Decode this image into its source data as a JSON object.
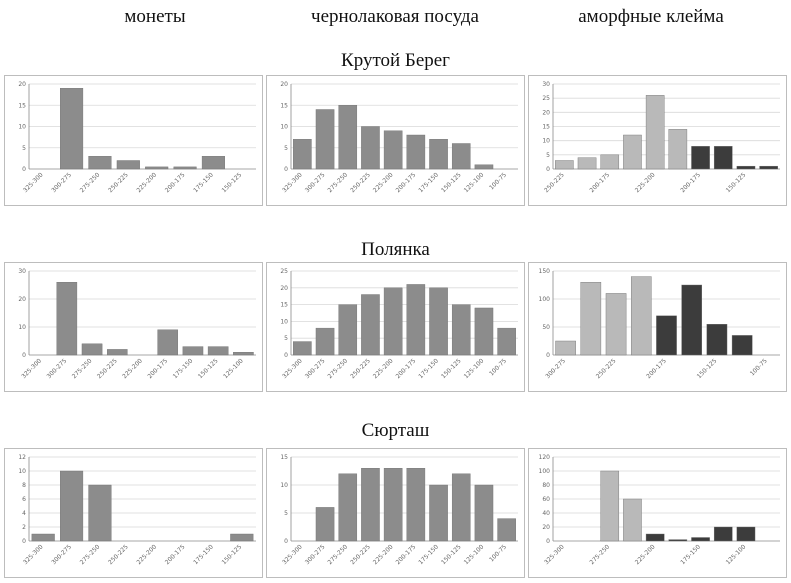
{
  "column_headers": [
    "монеты",
    "чернолаковая посуда",
    "аморфные клейма"
  ],
  "sites": [
    "Крутой Берег",
    "Полянка",
    "Сюрташ"
  ],
  "colors": {
    "medium_gray": "#8c8c8c",
    "light_gray": "#b9b9b9",
    "dark_gray": "#3c3c3c"
  },
  "chart_data": [
    {
      "type": "bar",
      "row": 0,
      "col": 0,
      "yticks": [
        "0",
        "5",
        "10",
        "15",
        "20"
      ],
      "ylim": [
        0,
        20
      ],
      "categories": [
        "325-300",
        "300-275",
        "275-250",
        "250-225",
        "225-200",
        "200-175",
        "175-150",
        "150-125"
      ],
      "values": [
        0,
        19,
        3,
        2,
        0.5,
        0.5,
        3,
        0
      ],
      "colors": [
        "m",
        "m",
        "m",
        "m",
        "m",
        "m",
        "m",
        "m"
      ]
    },
    {
      "type": "bar",
      "row": 0,
      "col": 1,
      "yticks": [
        "0",
        "5",
        "10",
        "15",
        "20"
      ],
      "ylim": [
        0,
        20
      ],
      "categories": [
        "325-300",
        "300-275",
        "275-250",
        "250-225",
        "225-200",
        "200-175",
        "175-150",
        "150-125",
        "125-100",
        "100-75"
      ],
      "values": [
        7,
        14,
        15,
        10,
        9,
        8,
        7,
        6,
        1,
        0
      ],
      "colors": [
        "m",
        "m",
        "m",
        "m",
        "m",
        "m",
        "m",
        "m",
        "m",
        "m"
      ]
    },
    {
      "type": "bar",
      "row": 0,
      "col": 2,
      "yticks": [
        "0",
        "5",
        "10",
        "15",
        "20",
        "25",
        "30"
      ],
      "ylim": [
        0,
        30
      ],
      "categories": [
        "250-225",
        "",
        "200-175",
        "",
        "225-200",
        "",
        "200-175",
        "",
        "150-125",
        ""
      ],
      "values": [
        3,
        4,
        5,
        12,
        26,
        14,
        8,
        8,
        1,
        1
      ],
      "colors": [
        "l",
        "l",
        "l",
        "l",
        "l",
        "l",
        "d",
        "d",
        "d",
        "d"
      ]
    },
    {
      "type": "bar",
      "row": 1,
      "col": 0,
      "yticks": [
        "0",
        "10",
        "20",
        "30"
      ],
      "ylim": [
        0,
        30
      ],
      "categories": [
        "325-300",
        "300-275",
        "275-250",
        "250-225",
        "225-200",
        "200-175",
        "175-150",
        "150-125",
        "125-100"
      ],
      "values": [
        0,
        26,
        4,
        2,
        0,
        9,
        3,
        3,
        1
      ],
      "colors": [
        "m",
        "m",
        "m",
        "m",
        "m",
        "m",
        "m",
        "m",
        "m"
      ]
    },
    {
      "type": "bar",
      "row": 1,
      "col": 1,
      "yticks": [
        "0",
        "5",
        "10",
        "15",
        "20",
        "25"
      ],
      "ylim": [
        0,
        25
      ],
      "categories": [
        "325-300",
        "300-275",
        "275-250",
        "250-225",
        "225-200",
        "200-175",
        "175-150",
        "150-125",
        "125-100",
        "100-75"
      ],
      "values": [
        4,
        8,
        15,
        18,
        20,
        21,
        20,
        15,
        14,
        8
      ],
      "colors": [
        "m",
        "m",
        "m",
        "m",
        "m",
        "m",
        "m",
        "m",
        "m",
        "m"
      ]
    },
    {
      "type": "bar",
      "row": 1,
      "col": 2,
      "yticks": [
        "0",
        "50",
        "100",
        "150"
      ],
      "ylim": [
        0,
        150
      ],
      "categories": [
        "300-275",
        "",
        "250-225",
        "",
        "200-175",
        "",
        "150-125",
        "",
        "100-75"
      ],
      "values": [
        25,
        130,
        110,
        140,
        70,
        125,
        55,
        35,
        0
      ],
      "colors": [
        "l",
        "l",
        "l",
        "l",
        "d",
        "d",
        "d",
        "d",
        "d"
      ]
    },
    {
      "type": "bar",
      "row": 2,
      "col": 0,
      "yticks": [
        "0",
        "2",
        "4",
        "6",
        "8",
        "10",
        "12"
      ],
      "ylim": [
        0,
        12
      ],
      "categories": [
        "325-300",
        "300-275",
        "275-250",
        "250-225",
        "225-200",
        "200-175",
        "175-150",
        "150-125"
      ],
      "values": [
        1,
        10,
        8,
        0,
        0,
        0,
        0,
        1
      ],
      "colors": [
        "m",
        "m",
        "m",
        "m",
        "m",
        "m",
        "m",
        "m"
      ]
    },
    {
      "type": "bar",
      "row": 2,
      "col": 1,
      "yticks": [
        "0",
        "5",
        "10",
        "15"
      ],
      "ylim": [
        0,
        15
      ],
      "categories": [
        "325-300",
        "300-275",
        "275-250",
        "250-225",
        "225-200",
        "200-175",
        "175-150",
        "150-125",
        "125-100",
        "100-75"
      ],
      "values": [
        0,
        6,
        12,
        13,
        13,
        13,
        10,
        12,
        10,
        4
      ],
      "colors": [
        "m",
        "m",
        "m",
        "m",
        "m",
        "m",
        "m",
        "m",
        "m",
        "m"
      ]
    },
    {
      "type": "bar",
      "row": 2,
      "col": 2,
      "yticks": [
        "0",
        "20",
        "40",
        "60",
        "80",
        "100",
        "120"
      ],
      "ylim": [
        0,
        120
      ],
      "categories": [
        "325-300",
        "",
        "275-250",
        "",
        "225-200",
        "",
        "175-150",
        "",
        "125-100",
        ""
      ],
      "values": [
        0,
        0,
        100,
        60,
        10,
        2,
        5,
        20,
        20,
        0
      ],
      "colors": [
        "l",
        "l",
        "l",
        "l",
        "d",
        "d",
        "d",
        "d",
        "d",
        "d"
      ]
    }
  ]
}
